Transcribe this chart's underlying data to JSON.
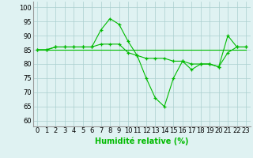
{
  "x": [
    0,
    1,
    2,
    3,
    4,
    5,
    6,
    7,
    8,
    9,
    10,
    11,
    12,
    13,
    14,
    15,
    16,
    17,
    18,
    19,
    20,
    21,
    22,
    23
  ],
  "line1": [
    85,
    85,
    86,
    86,
    86,
    86,
    86,
    92,
    96,
    94,
    88,
    83,
    75,
    68,
    65,
    75,
    81,
    78,
    80,
    80,
    79,
    90,
    86,
    86
  ],
  "line2": [
    85,
    85,
    86,
    86,
    86,
    86,
    86,
    87,
    87,
    87,
    84,
    83,
    82,
    82,
    82,
    81,
    81,
    80,
    80,
    80,
    79,
    84,
    86,
    86
  ],
  "line3": [
    85,
    85,
    85,
    85,
    85,
    85,
    85,
    85,
    85,
    85,
    85,
    85,
    85,
    85,
    85,
    85,
    85,
    85,
    85,
    85,
    85,
    85,
    85,
    85
  ],
  "bg_color": "#dff2f2",
  "grid_color": "#aacfcf",
  "line_color": "#00bb00",
  "marker": "+",
  "xlabel": "Humidité relative (%)",
  "ylabel_ticks": [
    60,
    65,
    70,
    75,
    80,
    85,
    90,
    95,
    100
  ],
  "ylim": [
    58,
    102
  ],
  "xlim": [
    -0.5,
    23.5
  ],
  "xlabel_fontsize": 7,
  "tick_fontsize": 6
}
